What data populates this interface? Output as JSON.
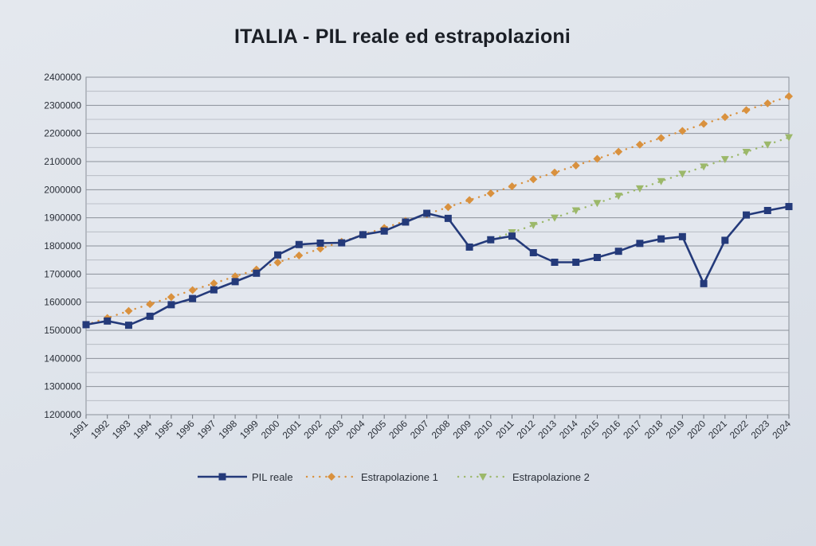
{
  "chart_data": {
    "type": "line",
    "title": "ITALIA - PIL reale ed estrapolazioni",
    "xlabel": "",
    "ylabel": "",
    "ylim": [
      1200000,
      2400000
    ],
    "yticks": [
      1200000,
      1300000,
      1400000,
      1500000,
      1600000,
      1700000,
      1800000,
      1900000,
      2000000,
      2100000,
      2200000,
      2300000,
      2400000
    ],
    "categories": [
      "1991",
      "1992",
      "1993",
      "1994",
      "1995",
      "1996",
      "1997",
      "1998",
      "1999",
      "2000",
      "2001",
      "2002",
      "2003",
      "2004",
      "2005",
      "2006",
      "2007",
      "2008",
      "2009",
      "2010",
      "2011",
      "2012",
      "2013",
      "2014",
      "2015",
      "2016",
      "2017",
      "2018",
      "2019",
      "2020",
      "2021",
      "2022",
      "2023",
      "2024"
    ],
    "grid": true,
    "legend_position": "bottom",
    "series": [
      {
        "name": "PIL reale",
        "color": "#243a7a",
        "marker": "square",
        "line": "solid",
        "values": [
          1520000,
          1533000,
          1518000,
          1550000,
          1591000,
          1613000,
          1644000,
          1673000,
          1703000,
          1768000,
          1805000,
          1810000,
          1811000,
          1840000,
          1853000,
          1885000,
          1916000,
          1898000,
          1796000,
          1822000,
          1835000,
          1776000,
          1742000,
          1742000,
          1759000,
          1781000,
          1809000,
          1825000,
          1833000,
          1666000,
          1820000,
          1910000,
          1926000,
          1940000
        ]
      },
      {
        "name": "Estrapolazione 1",
        "color": "#d9913e",
        "marker": "diamond",
        "line": "dotted",
        "values": [
          1520000,
          1544000,
          1569000,
          1593000,
          1618000,
          1643000,
          1667000,
          1692000,
          1716000,
          1741000,
          1766000,
          1790000,
          1815000,
          1840000,
          1864000,
          1889000,
          1913000,
          1938000,
          1963000,
          1987000,
          2012000,
          2037000,
          2061000,
          2086000,
          2110000,
          2135000,
          2160000,
          2184000,
          2209000,
          2234000,
          2258000,
          2283000,
          2307000,
          2332000
        ]
      },
      {
        "name": "Estrapolazione 2",
        "color": "#9cb86a",
        "marker": "triangle-down",
        "line": "dotted",
        "start_index": 18,
        "values": [
          null,
          null,
          null,
          null,
          null,
          null,
          null,
          null,
          null,
          null,
          null,
          null,
          null,
          null,
          null,
          null,
          null,
          null,
          1796000,
          1822000,
          1848000,
          1874000,
          1900000,
          1926000,
          1952000,
          1978000,
          2004000,
          2030000,
          2056000,
          2082000,
          2108000,
          2134000,
          2160000,
          2186000
        ]
      }
    ]
  }
}
